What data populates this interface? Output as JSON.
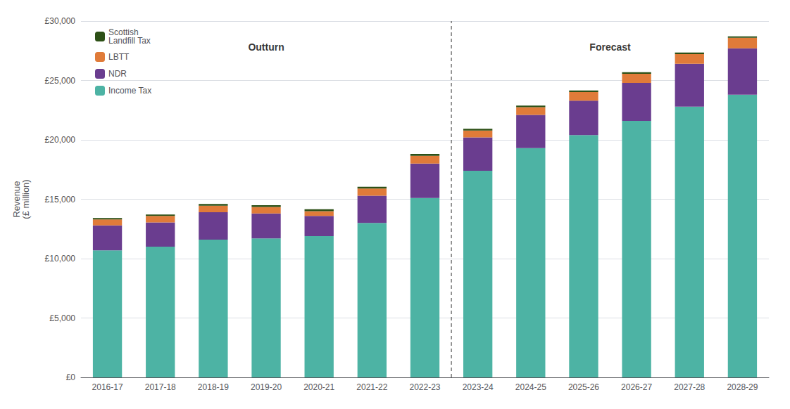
{
  "chart_data": {
    "type": "bar",
    "stacked": true,
    "categories": [
      "2016-17",
      "2017-18",
      "2018-19",
      "2019-20",
      "2020-21",
      "2021-22",
      "2022-23",
      "2023-24",
      "2024-25",
      "2025-26",
      "2026-27",
      "2027-28",
      "2028-29"
    ],
    "series": [
      {
        "name": "Income Tax",
        "color": "#4db3a4",
        "values": [
          10700,
          11000,
          11600,
          11700,
          11900,
          13000,
          15100,
          17400,
          19300,
          20400,
          21600,
          22800,
          23800
        ]
      },
      {
        "name": "NDR",
        "color": "#6a3d8f",
        "values": [
          2100,
          2050,
          2300,
          2100,
          1700,
          2300,
          2900,
          2800,
          2800,
          2900,
          3200,
          3600,
          3900
        ]
      },
      {
        "name": "LBTT",
        "color": "#e07b39",
        "values": [
          500,
          540,
          560,
          550,
          400,
          600,
          660,
          590,
          650,
          720,
          760,
          820,
          890
        ]
      },
      {
        "name": "Scottish\nLandfill Tax",
        "color": "#2d5016",
        "values": [
          120,
          120,
          140,
          150,
          150,
          150,
          150,
          140,
          130,
          130,
          130,
          130,
          130
        ]
      }
    ],
    "ylabel": "Revenue\n(£ million)",
    "ylim": [
      0,
      30000
    ],
    "yticks": [
      {
        "value": 0,
        "label": "£0"
      },
      {
        "value": 5000,
        "label": "£5,000"
      },
      {
        "value": 10000,
        "label": "£10,000"
      },
      {
        "value": 15000,
        "label": "£15,000"
      },
      {
        "value": 20000,
        "label": "£20,000"
      },
      {
        "value": 25000,
        "label": "£25,000"
      },
      {
        "value": 30000,
        "label": "£30,000"
      }
    ],
    "annotations": [
      {
        "text": "Outturn",
        "y": 27800,
        "x": [
          "2016-17",
          "2022-23"
        ]
      },
      {
        "text": "Forecast",
        "y": 27800,
        "x": [
          "2023-24",
          "2028-29"
        ]
      }
    ],
    "grid": true,
    "legend": "upper left"
  }
}
